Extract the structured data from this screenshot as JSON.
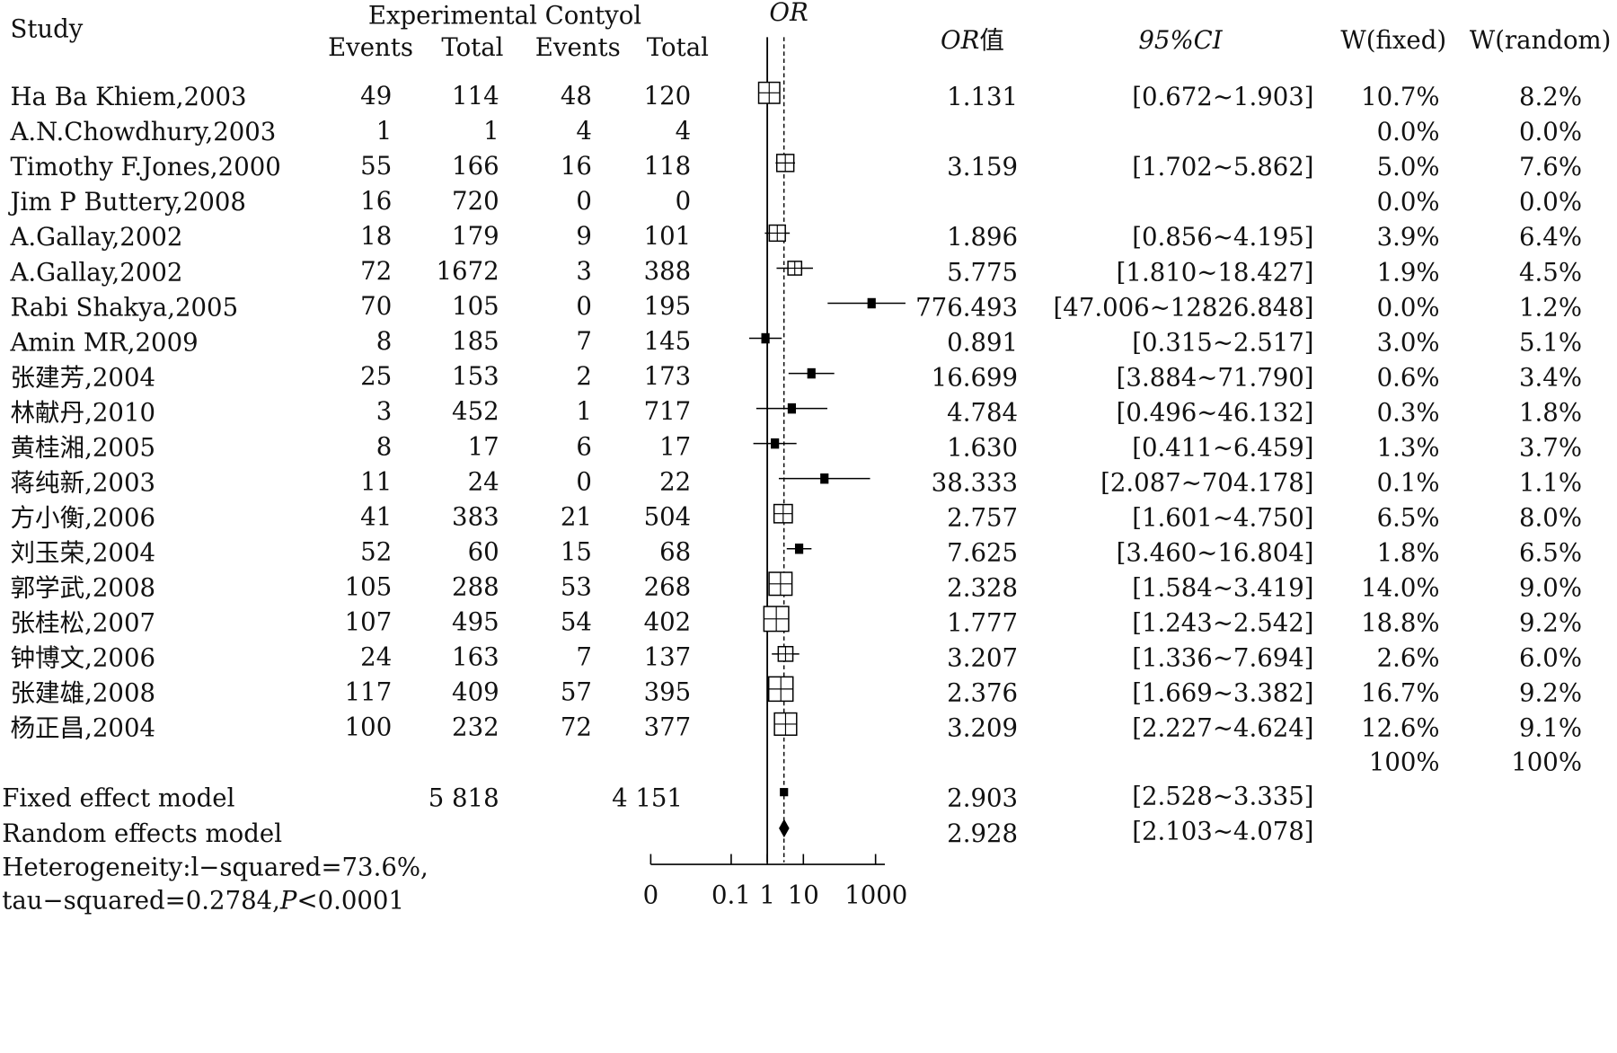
{
  "headers": {
    "study": "Study",
    "group_label": "Experimental Contyol",
    "events1": "Events",
    "total1": "Total",
    "events2": "Events",
    "total2": "Total",
    "or_plot": "OR",
    "or_value_italic": "OR",
    "or_value_suffix": "值",
    "ci_italic": "95%CI",
    "w_fixed": "W(fixed)",
    "w_random": "W(random)"
  },
  "studies": [
    {
      "name": "Ha Ba Khiem,2003",
      "e1": "49",
      "t1": "114",
      "e2": "48",
      "t2": "120",
      "or": "1.131",
      "ci": "[0.672~1.903]",
      "wf": "10.7%",
      "wr": "8.2%"
    },
    {
      "name": "A.N.Chowdhury,2003",
      "e1": "1",
      "t1": "1",
      "e2": "4",
      "t2": "4",
      "or": "",
      "ci": "",
      "wf": "0.0%",
      "wr": "0.0%"
    },
    {
      "name": "Timothy F.Jones,2000",
      "e1": "55",
      "t1": "166",
      "e2": "16",
      "t2": "118",
      "or": "3.159",
      "ci": "[1.702~5.862]",
      "wf": "5.0%",
      "wr": "7.6%"
    },
    {
      "name": "Jim P Buttery,2008",
      "e1": "16",
      "t1": "720",
      "e2": "0",
      "t2": "0",
      "or": "",
      "ci": "",
      "wf": "0.0%",
      "wr": "0.0%"
    },
    {
      "name": "A.Gallay,2002",
      "e1": "18",
      "t1": "179",
      "e2": "9",
      "t2": "101",
      "or": "1.896",
      "ci": "[0.856~4.195]",
      "wf": "3.9%",
      "wr": "6.4%"
    },
    {
      "name": "A.Gallay,2002",
      "e1": "72",
      "t1": "1672",
      "e2": "3",
      "t2": "388",
      "or": "5.775",
      "ci": "[1.810~18.427]",
      "wf": "1.9%",
      "wr": "4.5%"
    },
    {
      "name": "Rabi Shakya,2005",
      "e1": "70",
      "t1": "105",
      "e2": "0",
      "t2": "195",
      "or": "776.493",
      "ci": "[47.006~12826.848]",
      "wf": "0.0%",
      "wr": "1.2%"
    },
    {
      "name": "Amin MR,2009",
      "e1": "8",
      "t1": "185",
      "e2": "7",
      "t2": "145",
      "or": "0.891",
      "ci": "[0.315~2.517]",
      "wf": "3.0%",
      "wr": "5.1%"
    },
    {
      "name": "张建芳,2004",
      "e1": "25",
      "t1": "153",
      "e2": "2",
      "t2": "173",
      "or": "16.699",
      "ci": "[3.884~71.790]",
      "wf": "0.6%",
      "wr": "3.4%"
    },
    {
      "name": "林献丹,2010",
      "e1": "3",
      "t1": "452",
      "e2": "1",
      "t2": "717",
      "or": "4.784",
      "ci": "[0.496~46.132]",
      "wf": "0.3%",
      "wr": "1.8%"
    },
    {
      "name": "黄桂湘,2005",
      "e1": "8",
      "t1": "17",
      "e2": "6",
      "t2": "17",
      "or": "1.630",
      "ci": "[0.411~6.459]",
      "wf": "1.3%",
      "wr": "3.7%"
    },
    {
      "name": "蒋纯新,2003",
      "e1": "11",
      "t1": "24",
      "e2": "0",
      "t2": "22",
      "or": "38.333",
      "ci": "[2.087~704.178]",
      "wf": "0.1%",
      "wr": "1.1%"
    },
    {
      "name": "方小衡,2006",
      "e1": "41",
      "t1": "383",
      "e2": "21",
      "t2": "504",
      "or": "2.757",
      "ci": "[1.601~4.750]",
      "wf": "6.5%",
      "wr": "8.0%"
    },
    {
      "name": "刘玉荣,2004",
      "e1": "52",
      "t1": "60",
      "e2": "15",
      "t2": "68",
      "or": "7.625",
      "ci": "[3.460~16.804]",
      "wf": "1.8%",
      "wr": "6.5%"
    },
    {
      "name": "郭学武,2008",
      "e1": "105",
      "t1": "288",
      "e2": "53",
      "t2": "268",
      "or": "2.328",
      "ci": "[1.584~3.419]",
      "wf": "14.0%",
      "wr": "9.0%"
    },
    {
      "name": "张桂松,2007",
      "e1": "107",
      "t1": "495",
      "e2": "54",
      "t2": "402",
      "or": "1.777",
      "ci": "[1.243~2.542]",
      "wf": "18.8%",
      "wr": "9.2%"
    },
    {
      "name": "钟博文,2006",
      "e1": "24",
      "t1": "163",
      "e2": "7",
      "t2": "137",
      "or": "3.207",
      "ci": "[1.336~7.694]",
      "wf": "2.6%",
      "wr": "6.0%"
    },
    {
      "name": "张建雄,2008",
      "e1": "117",
      "t1": "409",
      "e2": "57",
      "t2": "395",
      "or": "2.376",
      "ci": "[1.669~3.382]",
      "wf": "16.7%",
      "wr": "9.2%"
    },
    {
      "name": "杨正昌,2004",
      "e1": "100",
      "t1": "232",
      "e2": "72",
      "t2": "377",
      "or": "3.209",
      "ci": "[2.227~4.624]",
      "wf": "12.6%",
      "wr": "9.1%"
    }
  ],
  "totals": {
    "wf": "100%",
    "wr": "100%"
  },
  "fixed": {
    "label": "Fixed effect model",
    "t1": "5 818",
    "t2": "4 151",
    "or": "2.903",
    "ci": "[2.528~3.335]"
  },
  "random": {
    "label": "Random effects model",
    "or": "2.928",
    "ci": "[2.103~4.078]"
  },
  "heterogeneity": {
    "line1": "Heterogeneity:l−squared=73.6%,",
    "line2_prefix": "tau−squared=0.2784,",
    "line2_p": "P",
    "line2_suffix": "<0.0001"
  },
  "chart_data": {
    "type": "forest",
    "scale": "log",
    "measure": "OR",
    "x_ticks": [
      "0",
      "0.1",
      "1",
      "10",
      "1000"
    ],
    "null_value": 1,
    "summary_line_value": 2.903,
    "points": [
      {
        "or": 1.131,
        "lo": 0.672,
        "hi": 1.903,
        "weight": 10.7,
        "marker": "open-square"
      },
      {
        "or": 3.159,
        "lo": 1.702,
        "hi": 5.862,
        "weight": 5.0,
        "marker": "open-square"
      },
      {
        "or": 1.896,
        "lo": 0.856,
        "hi": 4.195,
        "weight": 3.9,
        "marker": "open-square"
      },
      {
        "or": 5.775,
        "lo": 1.81,
        "hi": 18.427,
        "weight": 1.9,
        "marker": "open-square"
      },
      {
        "or": 776.493,
        "lo": 47.006,
        "hi": 12826.848,
        "weight": 0.0,
        "marker": "filled-square"
      },
      {
        "or": 0.891,
        "lo": 0.315,
        "hi": 2.517,
        "weight": 3.0,
        "marker": "filled-square"
      },
      {
        "or": 16.699,
        "lo": 3.884,
        "hi": 71.79,
        "weight": 0.6,
        "marker": "filled-square"
      },
      {
        "or": 4.784,
        "lo": 0.496,
        "hi": 46.132,
        "weight": 0.3,
        "marker": "filled-square"
      },
      {
        "or": 1.63,
        "lo": 0.411,
        "hi": 6.459,
        "weight": 1.3,
        "marker": "filled-square"
      },
      {
        "or": 38.333,
        "lo": 2.087,
        "hi": 704.178,
        "weight": 0.1,
        "marker": "filled-square"
      },
      {
        "or": 2.757,
        "lo": 1.601,
        "hi": 4.75,
        "weight": 6.5,
        "marker": "open-square"
      },
      {
        "or": 7.625,
        "lo": 3.46,
        "hi": 16.804,
        "weight": 1.8,
        "marker": "filled-square"
      },
      {
        "or": 2.328,
        "lo": 1.584,
        "hi": 3.419,
        "weight": 14.0,
        "marker": "open-square"
      },
      {
        "or": 1.777,
        "lo": 1.243,
        "hi": 2.542,
        "weight": 18.8,
        "marker": "open-square"
      },
      {
        "or": 3.207,
        "lo": 1.336,
        "hi": 7.694,
        "weight": 2.6,
        "marker": "open-square"
      },
      {
        "or": 2.376,
        "lo": 1.669,
        "hi": 3.382,
        "weight": 16.7,
        "marker": "open-square"
      },
      {
        "or": 3.209,
        "lo": 2.227,
        "hi": 4.624,
        "weight": 12.6,
        "marker": "open-square"
      }
    ],
    "summaries": [
      {
        "model": "fixed",
        "or": 2.903,
        "lo": 2.528,
        "hi": 3.335,
        "marker": "filled-square"
      },
      {
        "model": "random",
        "or": 2.928,
        "lo": 2.103,
        "hi": 4.078,
        "marker": "diamond"
      }
    ]
  }
}
